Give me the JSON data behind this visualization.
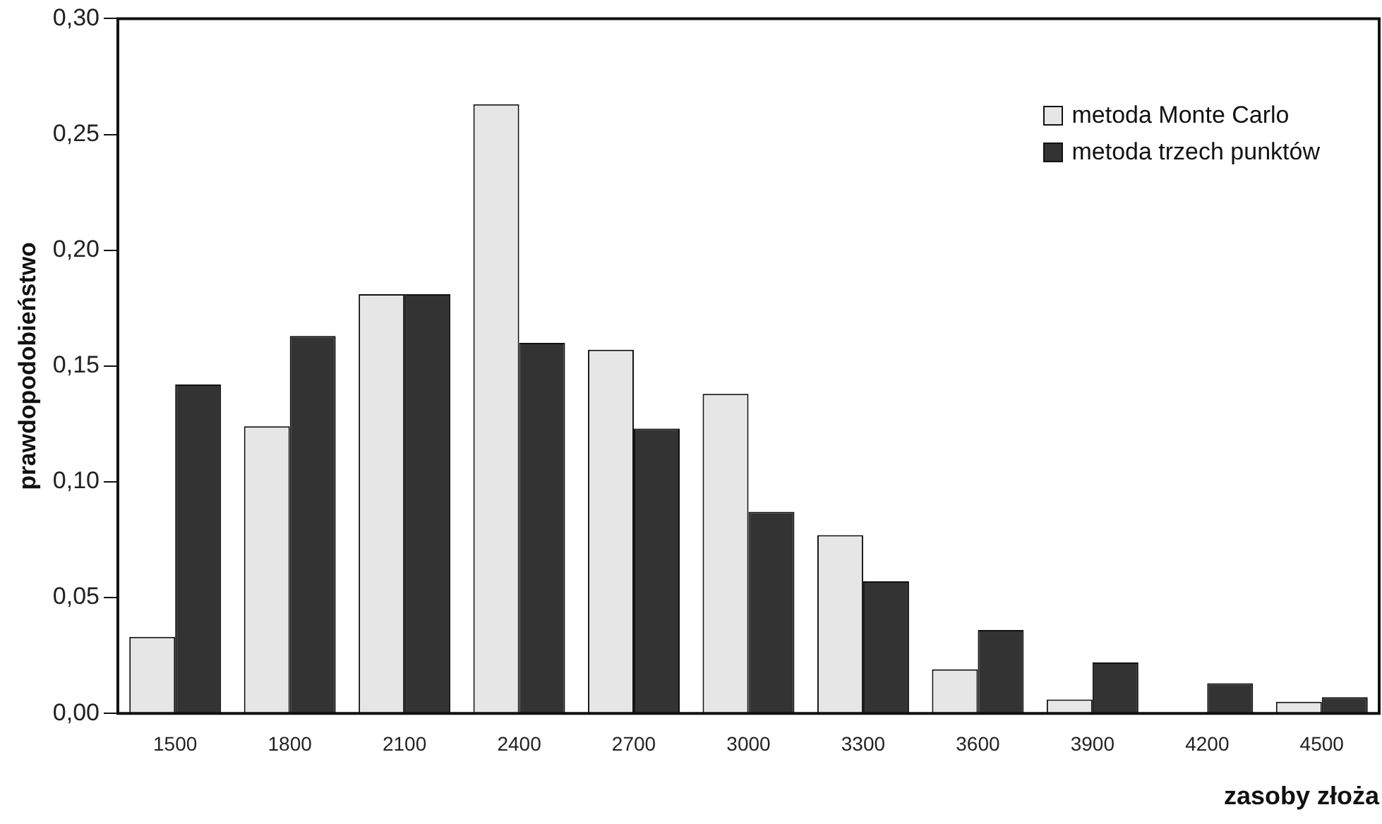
{
  "chart_data": {
    "type": "bar",
    "xlabel": "zasoby złoża",
    "ylabel": "prawdopodobieństwo",
    "categories": [
      "1500",
      "1800",
      "2100",
      "2400",
      "2700",
      "3000",
      "3300",
      "3600",
      "3900",
      "4200",
      "4500"
    ],
    "series": [
      {
        "name": "metoda Monte Carlo",
        "color": "#e6e6e6",
        "values": [
          0.033,
          0.124,
          0.181,
          0.263,
          0.157,
          0.138,
          0.077,
          0.019,
          0.006,
          0,
          0.005
        ]
      },
      {
        "name": "metoda trzech punktów",
        "color": "#333333",
        "values": [
          0.142,
          0.163,
          0.181,
          0.16,
          0.123,
          0.087,
          0.057,
          0.036,
          0.022,
          0.013,
          0.007
        ]
      }
    ],
    "ylim": [
      0,
      0.3
    ],
    "yticks": [
      {
        "value": 0,
        "label": "0,00"
      },
      {
        "value": 0.05,
        "label": "0,05"
      },
      {
        "value": 0.1,
        "label": "0,10"
      },
      {
        "value": 0.15,
        "label": "0,15"
      },
      {
        "value": 0.2,
        "label": "0,20"
      },
      {
        "value": 0.25,
        "label": "0,25"
      },
      {
        "value": 0.3,
        "label": "0,30"
      }
    ],
    "grid": false,
    "legend": "top right"
  }
}
